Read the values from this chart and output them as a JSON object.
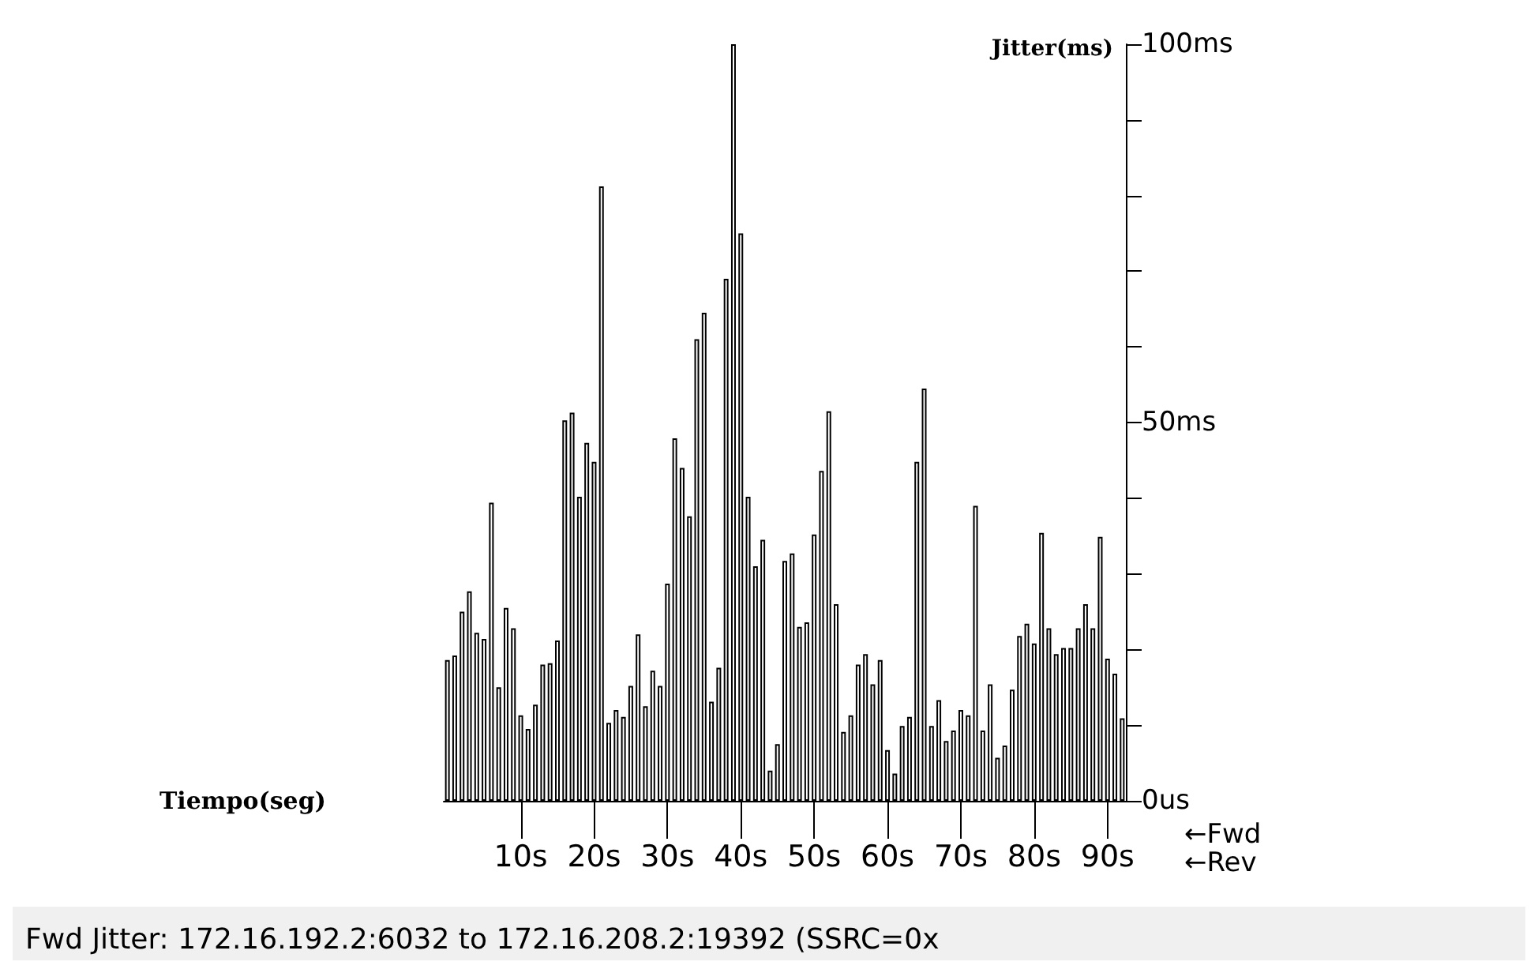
{
  "chart_data": {
    "type": "bar",
    "xlabel": "Tiempo(seg)",
    "ylabel": "Jitter(ms)",
    "categories": [
      null,
      null,
      null,
      null,
      null,
      null,
      null,
      null,
      null,
      null,
      "10s",
      null,
      null,
      null,
      null,
      null,
      null,
      null,
      null,
      null,
      "20s",
      null,
      null,
      null,
      null,
      null,
      null,
      null,
      null,
      null,
      "30s",
      null,
      null,
      null,
      null,
      null,
      null,
      null,
      null,
      null,
      "40s",
      null,
      null,
      null,
      null,
      null,
      null,
      null,
      null,
      null,
      "50s",
      null,
      null,
      null,
      null,
      null,
      null,
      null,
      null,
      null,
      "60s",
      null,
      null,
      null,
      null,
      null,
      null,
      null,
      null,
      null,
      "70s",
      null,
      null,
      null,
      null,
      null,
      null,
      null,
      null,
      null,
      "80s",
      null,
      null,
      null,
      null,
      null,
      null,
      null,
      null,
      null,
      "90s",
      null,
      null
    ],
    "values": [
      18.6,
      19.2,
      25,
      27.7,
      22.2,
      21.4,
      39.4,
      15,
      25.5,
      22.8,
      11.3,
      9.5,
      12.7,
      18,
      18.2,
      21.2,
      50.3,
      51.3,
      40.2,
      47.3,
      44.8,
      81.2,
      10.3,
      12,
      11.1,
      15.2,
      22,
      12.5,
      17.2,
      15.2,
      28.7,
      47.9,
      44,
      37.6,
      61,
      64.5,
      13.1,
      17.6,
      69,
      100,
      75,
      40.2,
      31,
      34.5,
      4,
      7.5,
      31.7,
      32.7,
      23,
      23.6,
      35.2,
      43.6,
      51.5,
      26,
      9.1,
      11.3,
      18,
      19.4,
      15.4,
      18.6,
      6.7,
      3.6,
      9.9,
      11.1,
      44.8,
      54.5,
      9.9,
      13.3,
      7.9,
      9.3,
      12,
      11.3,
      39,
      9.3,
      15.4,
      5.7,
      7.3,
      14.7,
      21.8,
      23.4,
      20.8,
      35.4,
      22.8,
      19.4,
      20.2,
      20.2,
      22.8,
      26,
      22.8,
      34.9,
      18.8,
      16.8,
      10.9
    ],
    "color": "#000000",
    "ylim": [
      0,
      100
    ],
    "yticks": [
      {
        "value": 0,
        "label": "0us"
      },
      {
        "value": 10,
        "label": null
      },
      {
        "value": 20,
        "label": null
      },
      {
        "value": 30,
        "label": null
      },
      {
        "value": 40,
        "label": null
      },
      {
        "value": 50,
        "label": "50ms"
      },
      {
        "value": 60,
        "label": null
      },
      {
        "value": 70,
        "label": null
      },
      {
        "value": 80,
        "label": null
      },
      {
        "value": 90,
        "label": null
      },
      {
        "value": 100,
        "label": "100ms"
      }
    ],
    "grid": false,
    "annotations": [
      "←Fwd",
      "←Rev",
      "Fwd Jitter: 172.16.192.2:6032 to 172.16.208.2:19392 (SSRC=0x"
    ]
  }
}
